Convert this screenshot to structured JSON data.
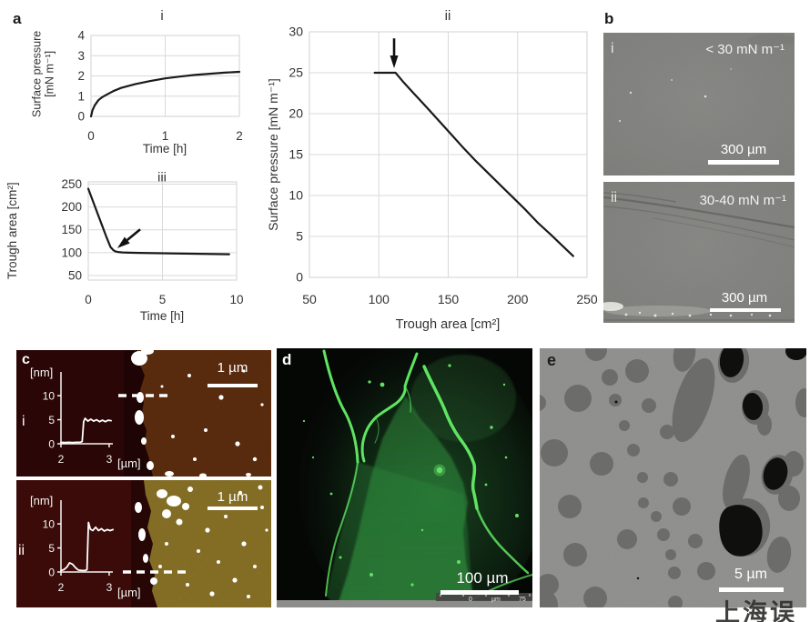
{
  "panel_letters": {
    "a": "a",
    "b": "b",
    "c": "c",
    "d": "d",
    "e": "e"
  },
  "chart_data": [
    {
      "id": "a-i",
      "type": "line",
      "title": "i",
      "xlabel": "Time [h]",
      "ylabel_lines": [
        "Surface pressure",
        "[mN m⁻¹]"
      ],
      "xlim": [
        0,
        2
      ],
      "ylim": [
        0,
        4
      ],
      "xticks": [
        0,
        1,
        2
      ],
      "yticks": [
        0,
        1,
        2,
        3,
        4
      ],
      "grid": true,
      "x": [
        0,
        0.02,
        0.05,
        0.1,
        0.15,
        0.2,
        0.3,
        0.4,
        0.5,
        0.6,
        0.8,
        1.0,
        1.2,
        1.4,
        1.6,
        1.8,
        2.0
      ],
      "y": [
        0,
        0.3,
        0.55,
        0.8,
        0.95,
        1.05,
        1.25,
        1.4,
        1.5,
        1.6,
        1.75,
        1.88,
        1.97,
        2.05,
        2.11,
        2.16,
        2.2
      ]
    },
    {
      "id": "a-ii",
      "type": "line",
      "title": "ii",
      "xlabel": "Trough area [cm²]",
      "ylabel": "Surface pressure [mN m⁻¹]",
      "xlim": [
        50,
        250
      ],
      "ylim": [
        0,
        30
      ],
      "xticks": [
        50,
        100,
        150,
        200,
        250
      ],
      "yticks": [
        0,
        5,
        10,
        15,
        20,
        25,
        30
      ],
      "grid": true,
      "x": [
        97,
        102,
        107,
        112,
        114,
        118,
        124,
        130,
        137,
        145,
        153,
        161,
        170,
        179,
        188,
        197,
        206,
        215,
        224,
        232,
        240
      ],
      "y": [
        25,
        25,
        25,
        25,
        24.6,
        23.8,
        22.7,
        21.6,
        20.3,
        18.8,
        17.3,
        15.8,
        14.2,
        12.7,
        11.2,
        9.7,
        8.2,
        6.6,
        5.2,
        3.9,
        2.6
      ],
      "annotation": {
        "type": "arrow",
        "from": [
          111,
          29.2
        ],
        "to": [
          111,
          26.0
        ]
      }
    },
    {
      "id": "a-iii",
      "type": "line",
      "title": "iii",
      "xlabel": "Time [h]",
      "ylabel": "Trough area [cm²]",
      "xlim": [
        0,
        10
      ],
      "ylim": [
        40,
        255
      ],
      "xticks": [
        0,
        5,
        10
      ],
      "yticks": [
        50,
        100,
        150,
        200,
        250
      ],
      "grid": true,
      "x": [
        0,
        0.3,
        0.6,
        0.9,
        1.2,
        1.5,
        1.7,
        1.85,
        2.0,
        2.3,
        2.8,
        3.5,
        4.5,
        5.5,
        6.5,
        7.5,
        8.5,
        9.5
      ],
      "y": [
        240,
        214,
        188,
        162,
        136,
        112,
        105,
        102.5,
        101.5,
        100.5,
        100,
        99.5,
        99,
        98.5,
        98,
        97.5,
        97,
        96.5
      ],
      "annotation": {
        "type": "arrow",
        "from": [
          3.5,
          151
        ],
        "to": [
          2.15,
          115
        ]
      }
    },
    {
      "id": "c-i-profile",
      "type": "line",
      "title": "",
      "ylabel": "[nm]",
      "xunit": "[µm]",
      "xlim": [
        2,
        3.19
      ],
      "ylim": [
        0,
        13.8
      ],
      "xticks": [
        2,
        3
      ],
      "yticks": [
        0,
        5,
        10
      ],
      "grid": false,
      "x": [
        2.0,
        2.08,
        2.16,
        2.24,
        2.32,
        2.4,
        2.44,
        2.47,
        2.5,
        2.56,
        2.62,
        2.68,
        2.74,
        2.8,
        2.86,
        2.92,
        2.98,
        3.04
      ],
      "y": [
        0.3,
        0.25,
        0.3,
        0.25,
        0.3,
        0.3,
        0.5,
        4.6,
        5.3,
        4.7,
        5.1,
        4.7,
        5.0,
        4.6,
        4.9,
        4.6,
        4.9,
        4.8
      ]
    },
    {
      "id": "c-ii-profile",
      "type": "line",
      "title": "",
      "ylabel": "[nm]",
      "xunit": "[µm]",
      "xlim": [
        2,
        3.19
      ],
      "ylim": [
        0,
        13.8
      ],
      "xticks": [
        2,
        3
      ],
      "yticks": [
        0,
        5,
        10
      ],
      "grid": false,
      "x": [
        2.0,
        2.06,
        2.12,
        2.18,
        2.24,
        2.3,
        2.36,
        2.44,
        2.5,
        2.54,
        2.57,
        2.61,
        2.66,
        2.72,
        2.78,
        2.84,
        2.9,
        2.96,
        3.02,
        3.08
      ],
      "y": [
        0.3,
        0.5,
        1.0,
        1.9,
        1.6,
        0.9,
        0.4,
        0.3,
        0.3,
        0.5,
        10.3,
        8.9,
        8.6,
        9.3,
        8.6,
        9.0,
        8.5,
        8.8,
        8.6,
        8.8
      ]
    }
  ],
  "panel_b": {
    "i": {
      "tag": "i",
      "annotation": "< 30 mN m⁻¹",
      "scale": "300 µm"
    },
    "ii": {
      "tag": "ii",
      "annotation": "30-40 mN m⁻¹",
      "scale": "300 µm"
    }
  },
  "panel_c": {
    "i": {
      "tag": "i",
      "scale": "1 µm"
    },
    "ii": {
      "tag": "ii",
      "scale": "1 µm"
    }
  },
  "panel_d": {
    "scale": "100 µm",
    "ruler": {
      "start": "0",
      "unit": "µm",
      "end": "75"
    }
  },
  "panel_e": {
    "scale": "5 µm"
  },
  "watermark": "上海误"
}
